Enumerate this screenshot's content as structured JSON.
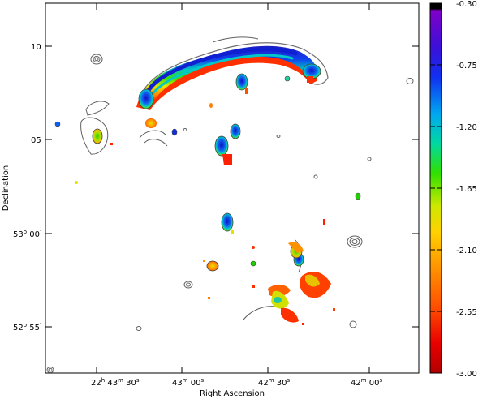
{
  "chart_data": {
    "type": "heatmap",
    "title": "",
    "xlabel": "Right Ascension",
    "ylabel": "Declination",
    "x_ticks": [
      {
        "h": "22",
        "m": "43",
        "s": "30",
        "full": true
      },
      {
        "h": "",
        "m": "43",
        "s": "00",
        "full": false
      },
      {
        "h": "",
        "m": "42",
        "s": "30",
        "full": false
      },
      {
        "h": "",
        "m": "42",
        "s": "00",
        "full": false
      }
    ],
    "y_ticks": [
      {
        "deg": "",
        "min": "10",
        "full": false
      },
      {
        "deg": "",
        "min": "05",
        "full": false
      },
      {
        "deg": "53",
        "min": "00",
        "full": true
      },
      {
        "deg": "52",
        "min": "55",
        "full": true
      }
    ],
    "colorbar": {
      "min": -3.0,
      "max": -0.3,
      "ticks": [
        "-0.30",
        "-0.75",
        "-1.20",
        "-1.65",
        "-2.10",
        "-2.55",
        "-3.00"
      ],
      "colors": [
        "#000000",
        "#7a00c8",
        "#1010e0",
        "#00a0f0",
        "#00d890",
        "#30e000",
        "#e8e800",
        "#ffa000",
        "#ff5a00",
        "#e80000",
        "#b00000"
      ]
    },
    "grid": false,
    "legend": "none"
  }
}
